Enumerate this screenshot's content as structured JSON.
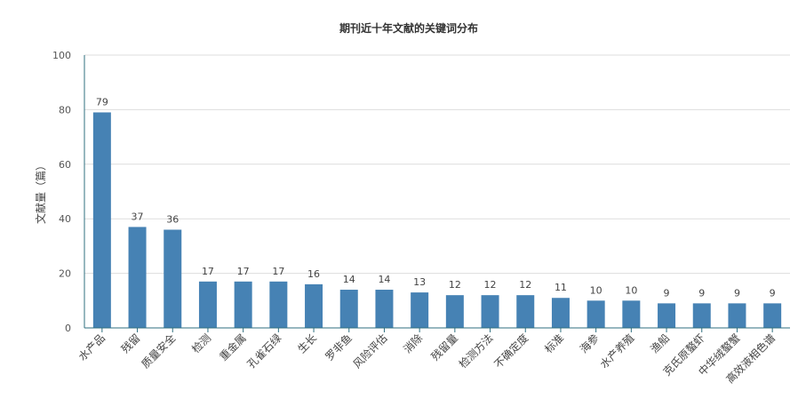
{
  "chart_data": {
    "type": "bar",
    "title": "期刊近十年文献的关键词分布",
    "xlabel": "",
    "ylabel": "文献量（篇）",
    "ylim": [
      0,
      100
    ],
    "yticks": [
      0,
      20,
      40,
      60,
      80,
      100
    ],
    "grid": true,
    "legend": "none",
    "categories": [
      "水产品",
      "残留",
      "质量安全",
      "检测",
      "重金属",
      "孔雀石绿",
      "生长",
      "罗非鱼",
      "风险评估",
      "消除",
      "残留量",
      "检测方法",
      "不确定度",
      "标准",
      "海参",
      "水产养殖",
      "渔船",
      "克氏原螯虾",
      "中华绒螯蟹",
      "高效液相色谱"
    ],
    "values": [
      79,
      37,
      36,
      17,
      17,
      17,
      16,
      14,
      14,
      13,
      12,
      12,
      12,
      11,
      10,
      10,
      9,
      9,
      9,
      9
    ],
    "colors": {
      "bar": "#4682b4",
      "grid": "#dddddd",
      "axis": "#2f6f7f"
    }
  }
}
